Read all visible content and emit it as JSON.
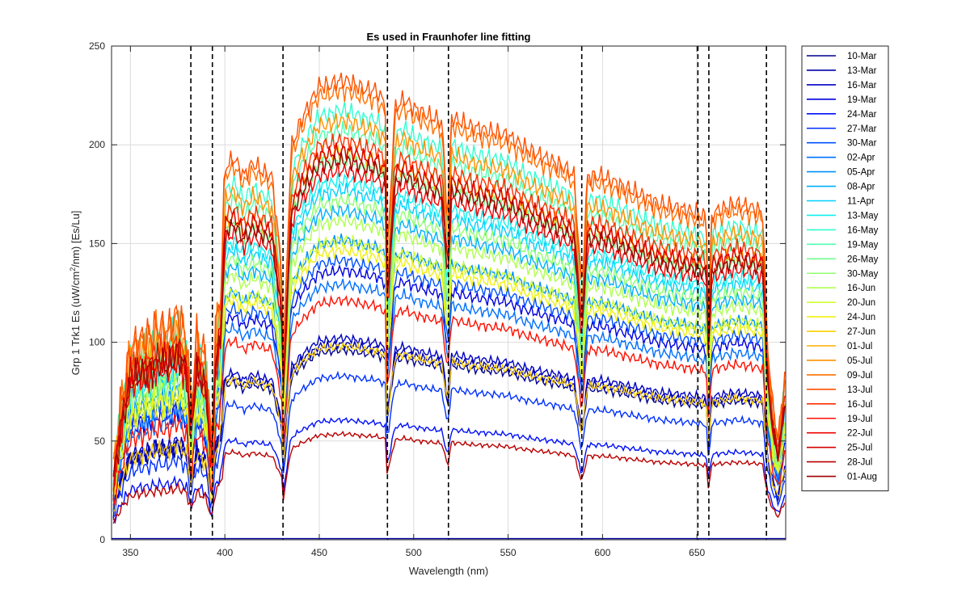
{
  "chart_data": {
    "type": "line",
    "title": "Es used in Fraunhofer line fitting",
    "xlabel": "Wavelength (nm)",
    "ylabel_parts": [
      "Grp 1 Trk1 Es (uW/cm",
      "2",
      "/nm) [Es/Lu]"
    ],
    "xlim": [
      340,
      697
    ],
    "ylim": [
      0,
      250
    ],
    "xticks": [
      350,
      400,
      450,
      500,
      550,
      600,
      650
    ],
    "yticks": [
      0,
      50,
      100,
      150,
      200,
      250
    ],
    "grid": true,
    "legend_position": "outside-right",
    "fraunhofer_lines_nm": [
      382,
      393.4,
      430.8,
      486.1,
      518.4,
      589.0,
      650.5,
      656.3,
      686.8
    ],
    "spectrum_x": [
      340,
      345,
      350,
      355,
      360,
      365,
      370,
      375,
      380,
      382,
      385,
      390,
      393,
      395,
      398,
      400,
      405,
      410,
      415,
      420,
      425,
      430,
      431,
      435,
      440,
      445,
      450,
      455,
      460,
      465,
      470,
      475,
      480,
      485,
      486,
      490,
      495,
      500,
      505,
      510,
      515,
      518,
      520,
      525,
      530,
      540,
      550,
      560,
      570,
      580,
      585,
      589,
      592,
      600,
      610,
      620,
      630,
      640,
      650,
      655,
      656,
      658,
      665,
      670,
      680,
      685,
      687,
      690,
      693,
      697
    ],
    "reference_shape": [
      0.12,
      0.3,
      0.42,
      0.44,
      0.45,
      0.47,
      0.46,
      0.5,
      0.44,
      0.28,
      0.45,
      0.4,
      0.2,
      0.46,
      0.55,
      0.82,
      0.84,
      0.8,
      0.83,
      0.81,
      0.8,
      0.6,
      0.4,
      0.86,
      0.92,
      0.96,
      1.0,
      1.0,
      1.01,
      1.01,
      1.0,
      0.99,
      0.99,
      0.96,
      0.62,
      0.95,
      0.97,
      0.95,
      0.94,
      0.93,
      0.92,
      0.7,
      0.93,
      0.92,
      0.91,
      0.9,
      0.89,
      0.86,
      0.84,
      0.82,
      0.8,
      0.55,
      0.8,
      0.8,
      0.78,
      0.76,
      0.74,
      0.73,
      0.72,
      0.71,
      0.5,
      0.72,
      0.73,
      0.74,
      0.73,
      0.72,
      0.45,
      0.3,
      0.22,
      0.38
    ],
    "series": [
      {
        "name": "10-Mar",
        "color": "#00008F",
        "scale": 95
      },
      {
        "name": "13-Mar",
        "color": "#0000A8",
        "scale": 98
      },
      {
        "name": "16-Mar",
        "color": "#0000C4",
        "scale": 101
      },
      {
        "name": "19-Mar",
        "color": "#0000DE",
        "scale": 135
      },
      {
        "name": "24-Mar",
        "color": "#0010F7",
        "scale": 60
      },
      {
        "name": "27-Mar",
        "color": "#0030FF",
        "scale": 82
      },
      {
        "name": "30-Mar",
        "color": "#0050FF",
        "scale": 140
      },
      {
        "name": "02-Apr",
        "color": "#0070FF",
        "scale": 128
      },
      {
        "name": "05-Apr",
        "color": "#0090FF",
        "scale": 150
      },
      {
        "name": "08-Apr",
        "color": "#00B0FF",
        "scale": 165
      },
      {
        "name": "11-Apr",
        "color": "#00D0FF",
        "scale": 175
      },
      {
        "name": "13-May",
        "color": "#10F0EE",
        "scale": 180
      },
      {
        "name": "16-May",
        "color": "#30FFCF",
        "scale": 215
      },
      {
        "name": "19-May",
        "color": "#50FFAF",
        "scale": 205
      },
      {
        "name": "26-May",
        "color": "#70FF8F",
        "scale": 190
      },
      {
        "name": "30-May",
        "color": "#90FF70",
        "scale": 170
      },
      {
        "name": "16-Jun",
        "color": "#B0FF50",
        "scale": 160
      },
      {
        "name": "20-Jun",
        "color": "#D0FF30",
        "scale": 150
      },
      {
        "name": "24-Jun",
        "color": "#F0F010",
        "scale": 145
      },
      {
        "name": "27-Jun",
        "color": "#FFD000",
        "scale": 97
      },
      {
        "name": "01-Jul",
        "color": "#FFB000",
        "scale": 195
      },
      {
        "name": "05-Jul",
        "color": "#FF9000",
        "scale": 210
      },
      {
        "name": "09-Jul",
        "color": "#FF7000",
        "scale": 225
      },
      {
        "name": "13-Jul",
        "color": "#FF5000",
        "scale": 230
      },
      {
        "name": "16-Jul",
        "color": "#FF3000",
        "scale": 200
      },
      {
        "name": "19-Jul",
        "color": "#FF1000",
        "scale": 120
      },
      {
        "name": "22-Jul",
        "color": "#EE0000",
        "scale": 185
      },
      {
        "name": "25-Jul",
        "color": "#D40000",
        "scale": 195
      },
      {
        "name": "28-Jul",
        "color": "#BA0000",
        "scale": 53
      },
      {
        "name": "01-Aug",
        "color": "#A00000",
        "scale": 190
      }
    ]
  }
}
